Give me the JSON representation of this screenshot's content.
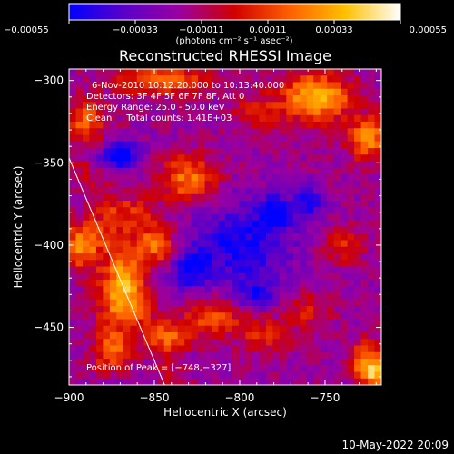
{
  "chart_data": {
    "type": "heatmap",
    "title": "Reconstructed RHESSI Image",
    "xlabel": "Heliocentric X (arcsec)",
    "ylabel": "Heliocentric Y (arcsec)",
    "xlim": [
      -900,
      -717
    ],
    "ylim": [
      -485,
      -293
    ],
    "xticks": [
      -900,
      -850,
      -800,
      -750
    ],
    "xtick_labels": [
      "−900",
      "−850",
      "−800",
      "−750"
    ],
    "yticks": [
      -300,
      -350,
      -400,
      -450
    ],
    "ytick_labels": [
      "−300",
      "−350",
      "−400",
      "−450"
    ],
    "colorbar": {
      "min": -0.00055,
      "max": 0.00055,
      "ticks": [
        -0.00055,
        -0.00033,
        -0.00011,
        0.00011,
        0.00033,
        0.00055
      ],
      "tick_labels": [
        "−0.00055",
        "−0.00033",
        "−0.00011",
        "0.00011",
        "0.00033",
        "0.00055"
      ],
      "units_label": "(photons cm⁻² s⁻¹ asec⁻²)",
      "colormap": [
        "#0000ff",
        "#5a00c8",
        "#9a00a0",
        "#d00000",
        "#ff6000",
        "#ffc000",
        "#ffffff"
      ]
    },
    "annotations": [
      "6-Nov-2010 10:12:20.000 to 10:13:40.000",
      "Detectors: 3F 4F 5F 6F 7F 8F, Att 0",
      "Energy Range: 25.0 - 50.0 keV",
      "Clean     Total counts: 1.41E+03"
    ],
    "peak_label": "Position of Peak = [−748,−327]",
    "peak": {
      "x": -748,
      "y": -327
    },
    "limb": {
      "x1": -900,
      "y1": -347,
      "x2": -844,
      "y2": -485
    },
    "hotspots": [
      {
        "x": -755,
        "y": -310,
        "intensity": 0.00055,
        "sx": 14,
        "sy": 10
      },
      {
        "x": -725,
        "y": -335,
        "intensity": 0.00045,
        "sx": 8,
        "sy": 9
      },
      {
        "x": -845,
        "y": -300,
        "intensity": 0.0004,
        "sx": 18,
        "sy": 6
      },
      {
        "x": -890,
        "y": -325,
        "intensity": 0.00033,
        "sx": 9,
        "sy": 10
      },
      {
        "x": -830,
        "y": -360,
        "intensity": 0.0004,
        "sx": 12,
        "sy": 10
      },
      {
        "x": -865,
        "y": -380,
        "intensity": 0.00025,
        "sx": 10,
        "sy": 8
      },
      {
        "x": -892,
        "y": -400,
        "intensity": 0.00045,
        "sx": 8,
        "sy": 10
      },
      {
        "x": -850,
        "y": -400,
        "intensity": 0.0004,
        "sx": 9,
        "sy": 9
      },
      {
        "x": -870,
        "y": -430,
        "intensity": 0.0005,
        "sx": 9,
        "sy": 16
      },
      {
        "x": -815,
        "y": -445,
        "intensity": 0.0003,
        "sx": 13,
        "sy": 8
      },
      {
        "x": -840,
        "y": -455,
        "intensity": 0.0003,
        "sx": 9,
        "sy": 7
      },
      {
        "x": -725,
        "y": -470,
        "intensity": 0.00045,
        "sx": 7,
        "sy": 8
      },
      {
        "x": -720,
        "y": -480,
        "intensity": 0.0004,
        "sx": 6,
        "sy": 5
      },
      {
        "x": -740,
        "y": -400,
        "intensity": 0.00025,
        "sx": 8,
        "sy": 8
      },
      {
        "x": -790,
        "y": -320,
        "intensity": 0.00022,
        "sx": 10,
        "sy": 8
      },
      {
        "x": -785,
        "y": -455,
        "intensity": 0.00022,
        "sx": 10,
        "sy": 8
      },
      {
        "x": -875,
        "y": -465,
        "intensity": 0.00035,
        "sx": 8,
        "sy": 8
      },
      {
        "x": -760,
        "y": -440,
        "intensity": 0.0002,
        "sx": 10,
        "sy": 8
      },
      {
        "x": -800,
        "y": -400,
        "intensity": -0.00033,
        "sx": 22,
        "sy": 18
      },
      {
        "x": -870,
        "y": -345,
        "intensity": -0.00045,
        "sx": 8,
        "sy": 6
      },
      {
        "x": -830,
        "y": -415,
        "intensity": -0.00033,
        "sx": 8,
        "sy": 8
      },
      {
        "x": -780,
        "y": -380,
        "intensity": -0.00033,
        "sx": 7,
        "sy": 7
      },
      {
        "x": -760,
        "y": -375,
        "intensity": -0.00028,
        "sx": 7,
        "sy": 7
      },
      {
        "x": -790,
        "y": -430,
        "intensity": -0.0003,
        "sx": 8,
        "sy": 6
      }
    ]
  },
  "footer": {
    "timestamp": "10-May-2022 20:09"
  }
}
